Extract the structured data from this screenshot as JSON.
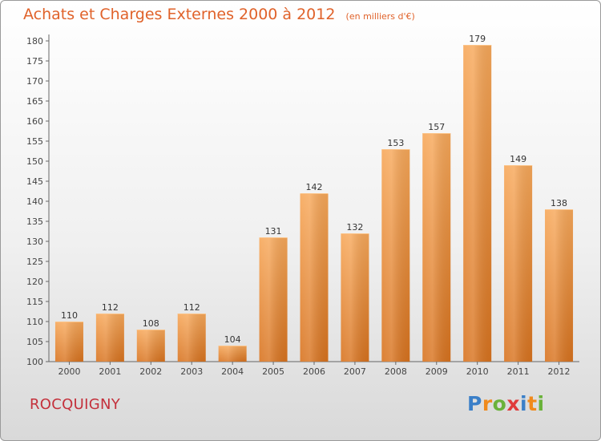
{
  "header": {
    "title": "Achats et Charges Externes 2000 à 2012",
    "unit": "(en milliers d'€)"
  },
  "footer": {
    "place": "ROCQUIGNY",
    "logo_letters": [
      "P",
      "r",
      "o",
      "x",
      "i",
      "t",
      "i"
    ],
    "logo_colors": [
      "#3a7fc8",
      "#f08a1c",
      "#6ab23a",
      "#e03c3c",
      "#3a7fc8",
      "#f08a1c",
      "#6ab23a"
    ]
  },
  "colors": {
    "bar_top": "#f7a85a",
    "bar_bottom": "#d8731f",
    "accent": "#e0622a"
  },
  "chart_data": {
    "type": "bar",
    "title": "Achats et Charges Externes 2000 à 2012",
    "unit": "(en milliers d'€)",
    "categories": [
      "2000",
      "2001",
      "2002",
      "2003",
      "2004",
      "2005",
      "2006",
      "2007",
      "2008",
      "2009",
      "2010",
      "2011",
      "2012"
    ],
    "values": [
      110,
      112,
      108,
      112,
      104,
      131,
      142,
      132,
      153,
      157,
      179,
      149,
      138
    ],
    "ylim": [
      100,
      180
    ],
    "yticks": [
      100,
      105,
      110,
      115,
      120,
      125,
      130,
      135,
      140,
      145,
      150,
      155,
      160,
      165,
      170,
      175,
      180
    ],
    "grid": false,
    "data_labels": true
  }
}
